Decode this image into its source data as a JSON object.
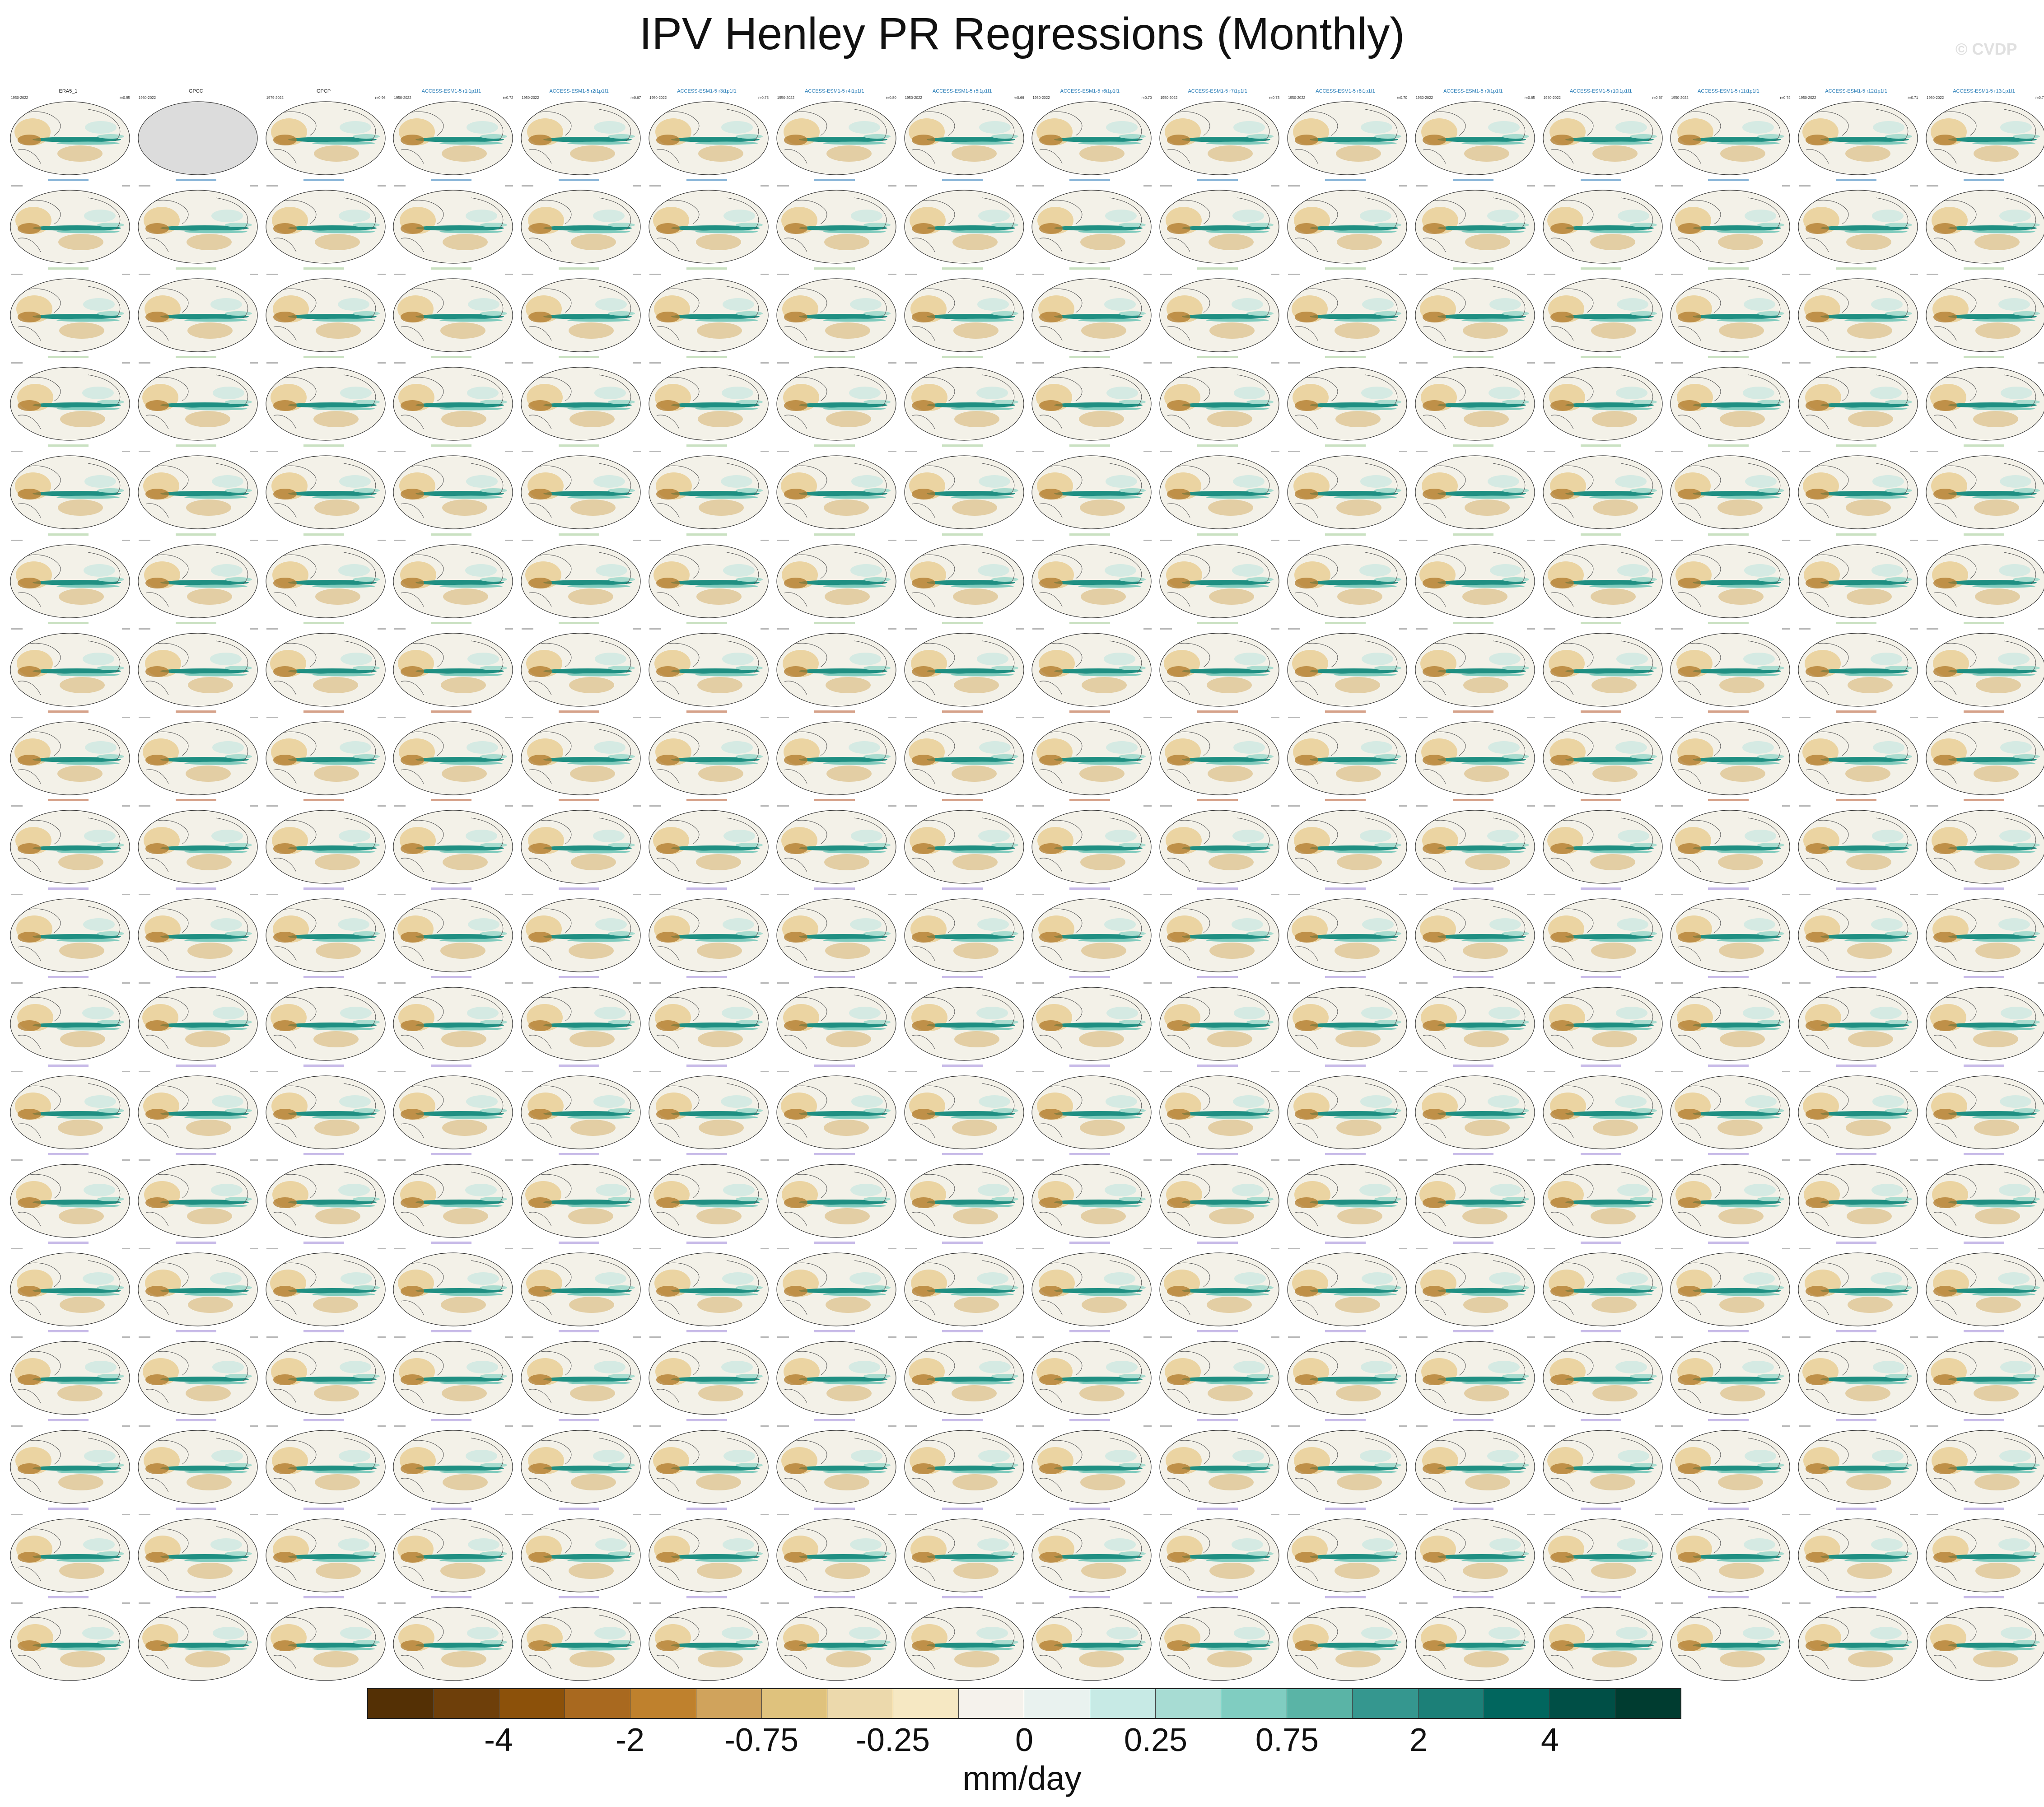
{
  "title": "IPV Henley PR Regressions (Monthly)",
  "watermark": "© CVDP",
  "grid": {
    "rows": 18,
    "cols": 16
  },
  "panels": [
    {
      "title": "ERA5_1",
      "years": "1950-2022",
      "corr": "r=0.95",
      "style": "obs",
      "missing": false
    },
    {
      "title": "GPCC",
      "years": "1950-2022",
      "corr": "",
      "style": "obs",
      "missing": true
    },
    {
      "title": "GPCP",
      "years": "1979-2022",
      "corr": "r=0.96",
      "style": "obs",
      "missing": false
    },
    {
      "title": "ACCESS-ESM1-5 r1i1p1f1",
      "years": "1950-2022",
      "corr": "r=0.72",
      "style": "access"
    },
    {
      "title": "ACCESS-ESM1-5 r2i1p1f1",
      "years": "1950-2022",
      "corr": "r=0.67",
      "style": "access"
    },
    {
      "title": "ACCESS-ESM1-5 r3i1p1f1",
      "years": "1950-2022",
      "corr": "r=0.75",
      "style": "access"
    },
    {
      "title": "ACCESS-ESM1-5 r4i1p1f1",
      "years": "1950-2022",
      "corr": "r=0.80",
      "style": "access"
    },
    {
      "title": "ACCESS-ESM1-5 r5i1p1f1",
      "years": "1950-2022",
      "corr": "r=0.66",
      "style": "access"
    },
    {
      "title": "ACCESS-ESM1-5 r6i1p1f1",
      "years": "1950-2022",
      "corr": "r=0.70",
      "style": "access"
    },
    {
      "title": "ACCESS-ESM1-5 r7i1p1f1",
      "years": "1950-2022",
      "corr": "r=0.73",
      "style": "access"
    },
    {
      "title": "ACCESS-ESM1-5 r8i1p1f1",
      "years": "1950-2022",
      "corr": "r=0.70",
      "style": "access"
    },
    {
      "title": "ACCESS-ESM1-5 r9i1p1f1",
      "years": "1950-2022",
      "corr": "r=0.65",
      "style": "access"
    },
    {
      "title": "ACCESS-ESM1-5 r10i1p1f1",
      "years": "1950-2022",
      "corr": "r=0.67",
      "style": "access"
    },
    {
      "title": "ACCESS-ESM1-5 r11i1p1f1",
      "years": "1950-2022",
      "corr": "r=0.74",
      "style": "access"
    },
    {
      "title": "ACCESS-ESM1-5 r12i1p1f1",
      "years": "1950-2022",
      "corr": "r=0.71",
      "style": "access"
    },
    {
      "title": "ACCESS-ESM1-5 r13i1p1f1",
      "years": "1950-2022",
      "corr": "r=0.72",
      "style": "access"
    }
  ],
  "colorbar": {
    "colors": [
      "#543005",
      "#6e3f0a",
      "#8c510a",
      "#a9691f",
      "#bf812d",
      "#d0a35c",
      "#dfc27d",
      "#ecd9ac",
      "#f6e8c3",
      "#f5f2ec",
      "#e9f2ef",
      "#c7eae5",
      "#a7dcd3",
      "#80cdc1",
      "#5ab4a6",
      "#35978f",
      "#1c8078",
      "#01665e",
      "#004f46",
      "#003c30"
    ],
    "labels": [
      "-4",
      "-2",
      "-0.75",
      "-0.25",
      "0",
      "0.25",
      "0.75",
      "2",
      "4"
    ],
    "units": "mm/day"
  }
}
